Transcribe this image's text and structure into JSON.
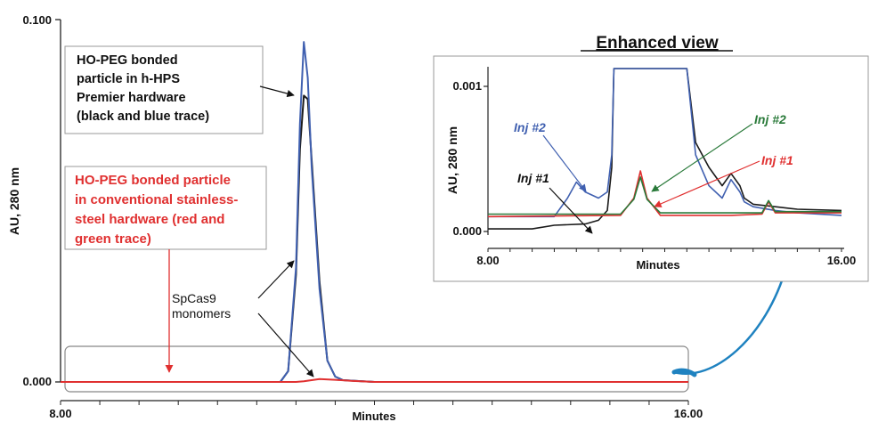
{
  "chart_data": [
    {
      "type": "line",
      "title": "",
      "xlabel": "Minutes",
      "ylabel": "AU, 280 nm",
      "xlim": [
        8.0,
        16.0
      ],
      "ylim": [
        0.0,
        0.1
      ],
      "x_ticks": [
        "8.00",
        "16.00"
      ],
      "y_ticks": [
        "0.000",
        "0.100"
      ],
      "series": [
        {
          "color": "#1a1a1a",
          "x": [
            8.0,
            10.8,
            10.9,
            11.0,
            11.05,
            11.1,
            11.15,
            11.2,
            11.3,
            11.4,
            11.5,
            11.6,
            12.0,
            16.0
          ],
          "y": [
            0.0,
            0.0,
            0.003,
            0.03,
            0.065,
            0.08,
            0.079,
            0.062,
            0.028,
            0.006,
            0.0015,
            0.0005,
            0.0,
            0.0
          ]
        },
        {
          "color": "#4060b0",
          "x": [
            8.0,
            10.8,
            10.9,
            11.0,
            11.05,
            11.1,
            11.15,
            11.2,
            11.3,
            11.4,
            11.5,
            11.6,
            12.0,
            16.0
          ],
          "y": [
            0.0,
            0.0,
            0.003,
            0.032,
            0.072,
            0.095,
            0.085,
            0.06,
            0.026,
            0.006,
            0.0015,
            0.0005,
            0.0,
            0.0
          ]
        },
        {
          "color": "#e03030",
          "x": [
            8.0,
            11.0,
            11.1,
            11.3,
            11.5,
            11.7,
            12.0,
            16.0
          ],
          "y": [
            0.0,
            0.0,
            0.0002,
            0.0008,
            0.0006,
            0.0003,
            0.0,
            0.0
          ]
        }
      ],
      "annotations": {
        "hhps": [
          "HO-PEG bonded",
          "particle in h-HPS",
          "Premier hardware",
          "(black and blue trace)"
        ],
        "conv": [
          "HO-PEG bonded particle",
          "in conventional stainless-",
          "steel hardware (red and",
          "green trace)"
        ],
        "monomers": [
          "SpCas9",
          "monomers"
        ]
      }
    },
    {
      "type": "line",
      "title": "Enhanced view",
      "xlabel": "Minutes",
      "ylabel": "AU, 280 nm",
      "xlim": [
        8.0,
        16.0
      ],
      "ylim": [
        -0.0002,
        0.0012
      ],
      "x_ticks": [
        "8.00",
        "16.00"
      ],
      "y_ticks": [
        "0.000",
        "0.001"
      ],
      "series": [
        {
          "color": "#1a1a1a",
          "x": [
            8.0,
            9.0,
            9.5,
            10.2,
            10.5,
            10.7,
            10.8,
            10.85,
            12.5,
            12.7,
            13.0,
            13.3,
            13.5,
            13.7,
            13.8,
            14.0,
            14.5,
            15.0,
            16.0
          ],
          "y": [
            -0.0001,
            -0.0001,
            -7e-05,
            -6e-05,
            -3e-05,
            5e-05,
            0.0004,
            0.0012,
            0.0012,
            0.0006,
            0.0004,
            0.00025,
            0.00035,
            0.00025,
            0.00015,
            0.0001,
            8e-05,
            6e-05,
            5e-05
          ]
        },
        {
          "color": "#4060b0",
          "x": [
            8.0,
            9.5,
            9.8,
            10.0,
            10.2,
            10.5,
            10.7,
            10.8,
            10.85,
            12.5,
            12.7,
            13.0,
            13.3,
            13.5,
            13.7,
            13.8,
            14.0,
            14.5,
            15.0,
            16.0
          ],
          "y": [
            0.0,
            0.0,
            0.00015,
            0.00028,
            0.0002,
            0.00015,
            0.0002,
            0.0005,
            0.0012,
            0.0012,
            0.0005,
            0.00025,
            0.00015,
            0.0003,
            0.0002,
            0.00012,
            8e-05,
            5e-05,
            3e-05,
            1e-05
          ]
        },
        {
          "color": "#e03030",
          "x": [
            8.0,
            11.0,
            11.3,
            11.45,
            11.6,
            11.9,
            13.5,
            14.2,
            14.35,
            14.5,
            16.0
          ],
          "y": [
            0.0,
            1e-05,
            0.00015,
            0.00037,
            0.00015,
            1e-05,
            1e-05,
            2e-05,
            0.00012,
            3e-05,
            3e-05
          ]
        },
        {
          "color": "#2a7a3a",
          "x": [
            8.0,
            11.0,
            11.3,
            11.45,
            11.6,
            11.9,
            13.5,
            14.2,
            14.35,
            14.5,
            16.0
          ],
          "y": [
            2e-05,
            2e-05,
            0.00014,
            0.00032,
            0.00014,
            3e-05,
            3e-05,
            3e-05,
            0.00013,
            4e-05,
            4e-05
          ]
        }
      ],
      "annotations": {
        "blue_inj": "Inj #2",
        "black_inj": "Inj #1",
        "green_inj": "Inj #2",
        "red_inj": "Inj #1"
      }
    }
  ]
}
